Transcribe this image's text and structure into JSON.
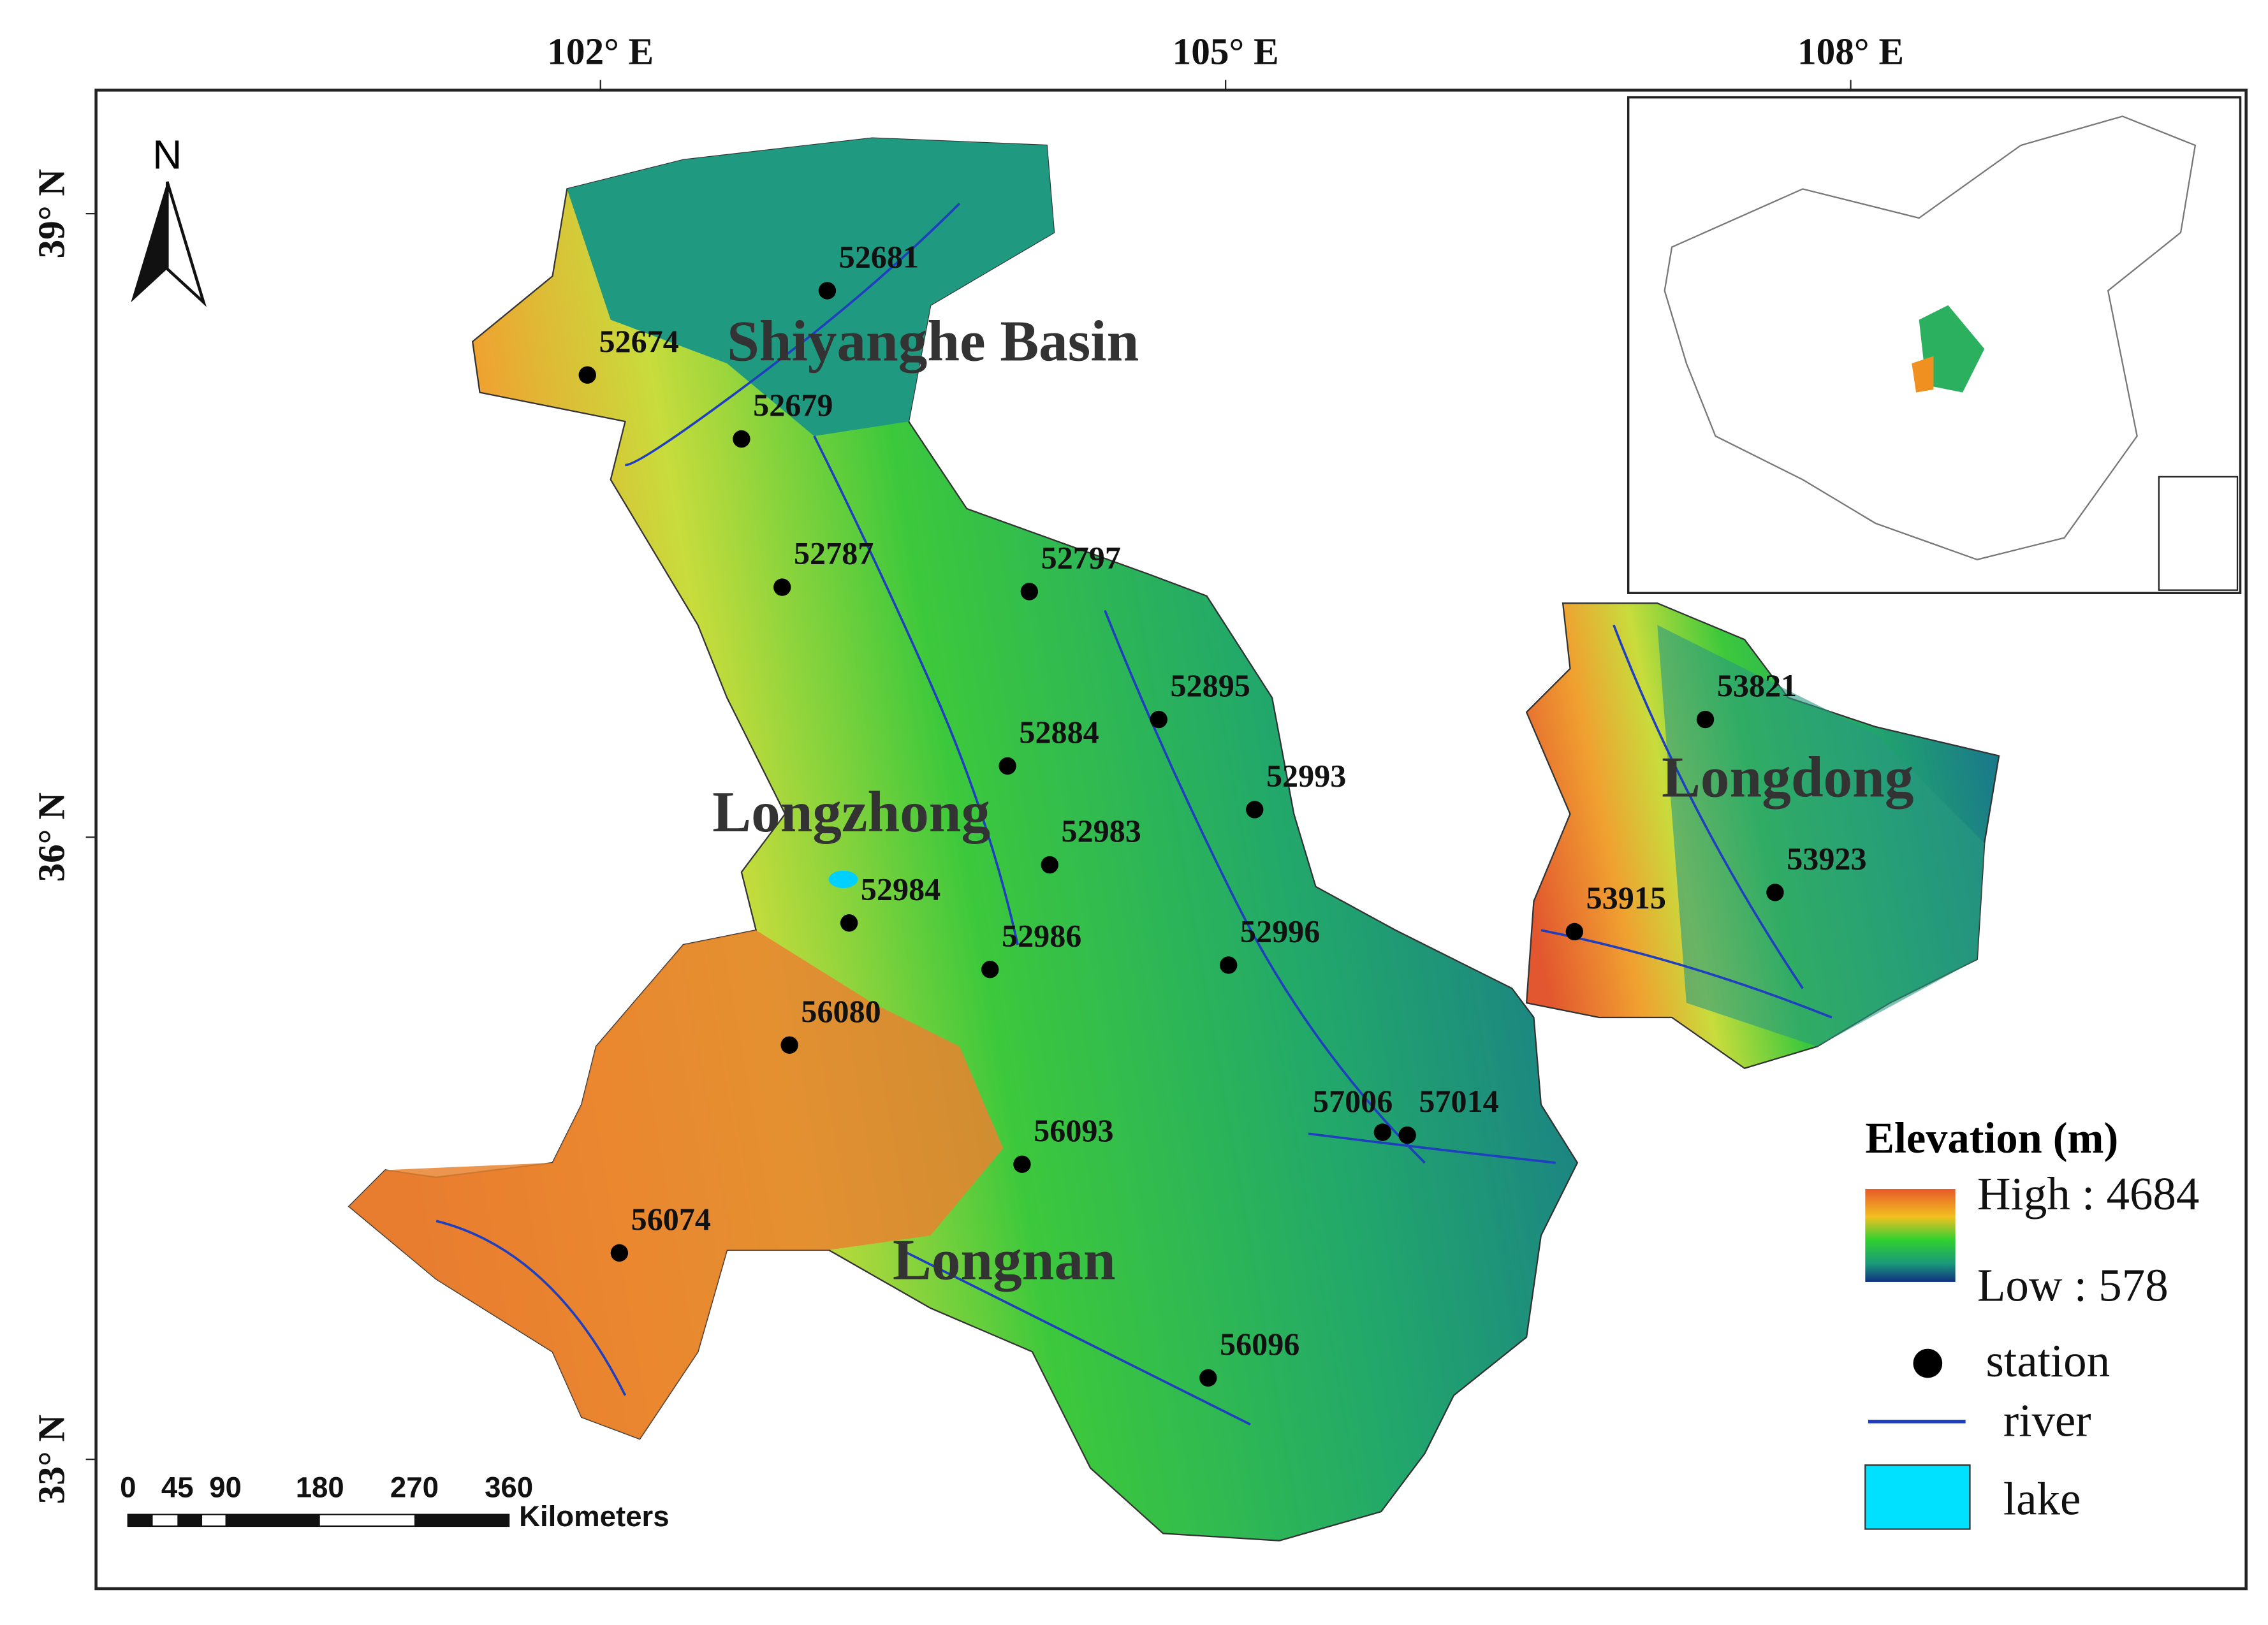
{
  "map": {
    "lon_labels": [
      "102° E",
      "105° E",
      "108° E"
    ],
    "lat_labels": [
      "39° N",
      "36° N",
      "33° N"
    ],
    "north": "N",
    "regions": [
      "Shiyanghe Basin",
      "Longzhong",
      "Longdong",
      "Longnan"
    ],
    "stations": [
      "52681",
      "52674",
      "52679",
      "52787",
      "52797",
      "52895",
      "52884",
      "52993",
      "52983",
      "52984",
      "52986",
      "52996",
      "56080",
      "57006",
      "57014",
      "56093",
      "56074",
      "56096",
      "53821",
      "53923",
      "53915"
    ],
    "scale_labels": [
      "0",
      "45",
      "90",
      "180",
      "270",
      "360"
    ],
    "scale_unit": "Kilometers",
    "legend": {
      "title": "Elevation (m)",
      "high": "High : 4684",
      "low": "Low : 578",
      "station": "station",
      "river": "river",
      "lake": "lake"
    }
  }
}
